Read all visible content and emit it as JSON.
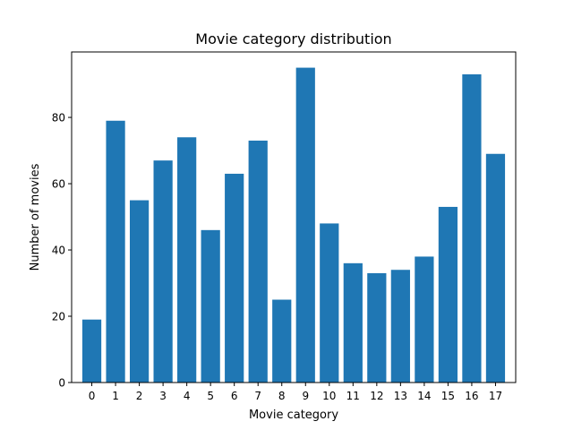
{
  "chart_data": {
    "type": "bar",
    "title": "Movie category distribution",
    "xlabel": "Movie category",
    "ylabel": "Number of movies",
    "categories": [
      "0",
      "1",
      "2",
      "3",
      "4",
      "5",
      "6",
      "7",
      "8",
      "9",
      "10",
      "11",
      "12",
      "13",
      "14",
      "15",
      "16",
      "17"
    ],
    "values": [
      19,
      79,
      55,
      67,
      74,
      46,
      63,
      73,
      25,
      95,
      48,
      36,
      33,
      34,
      38,
      53,
      93,
      69
    ],
    "ylim": [
      0,
      99.75
    ],
    "yticks": [
      0,
      20,
      40,
      60,
      80
    ],
    "grid": false,
    "legend": "none",
    "bar_color": "#1f77b4"
  }
}
